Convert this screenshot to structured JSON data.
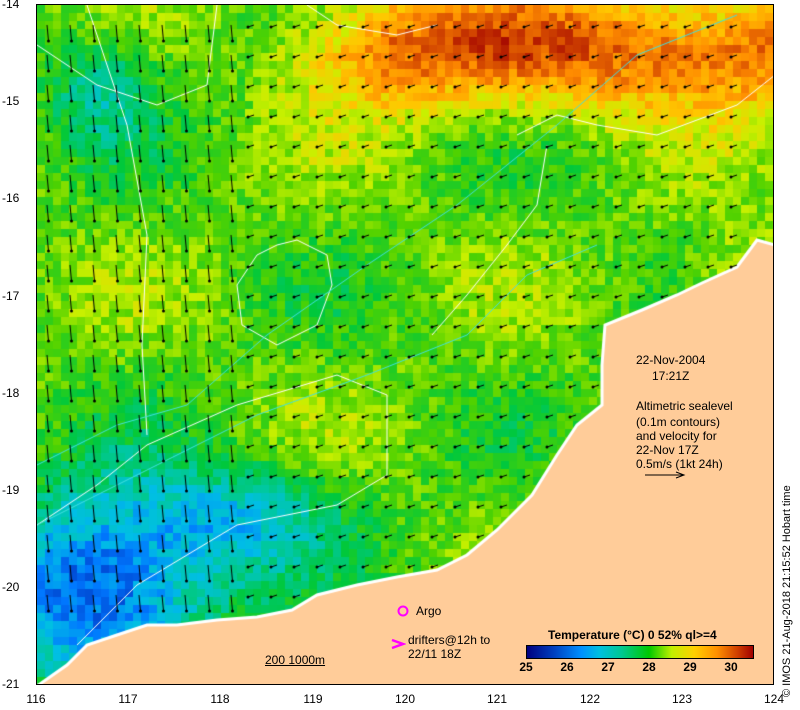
{
  "map": {
    "y_ticks": [
      "-14",
      "-15",
      "-16",
      "-17",
      "-18",
      "-19",
      "-20",
      "-21"
    ],
    "x_ticks": [
      "116",
      "117",
      "118",
      "119",
      "120",
      "121",
      "122",
      "123",
      "124"
    ],
    "date": "22-Nov-2004",
    "time": "17:21Z",
    "altimetry_note": [
      "Altimetric sealevel",
      "(0.1m contours)",
      "and velocity for",
      "22-Nov 17Z",
      "0.5m/s (1kt 24h)"
    ],
    "argo_label": "Argo",
    "drifters_label": [
      "drifters@12h to",
      "22/11 18Z"
    ],
    "scale_label": "200  1000m",
    "credit": "© IMOS 21-Aug-2018 21:15:52 Hobart time",
    "colorbar": {
      "title": "Temperature (°C) 0 52% ql>=4",
      "ticks": [
        "25",
        "26",
        "27",
        "28",
        "29",
        "30"
      ],
      "range": [
        25,
        30.5
      ]
    },
    "colors": {
      "land": "#FFCC99",
      "argo": "#FF00FF",
      "contour": "#FFFFFF",
      "isobath": "#40E0E0"
    }
  }
}
